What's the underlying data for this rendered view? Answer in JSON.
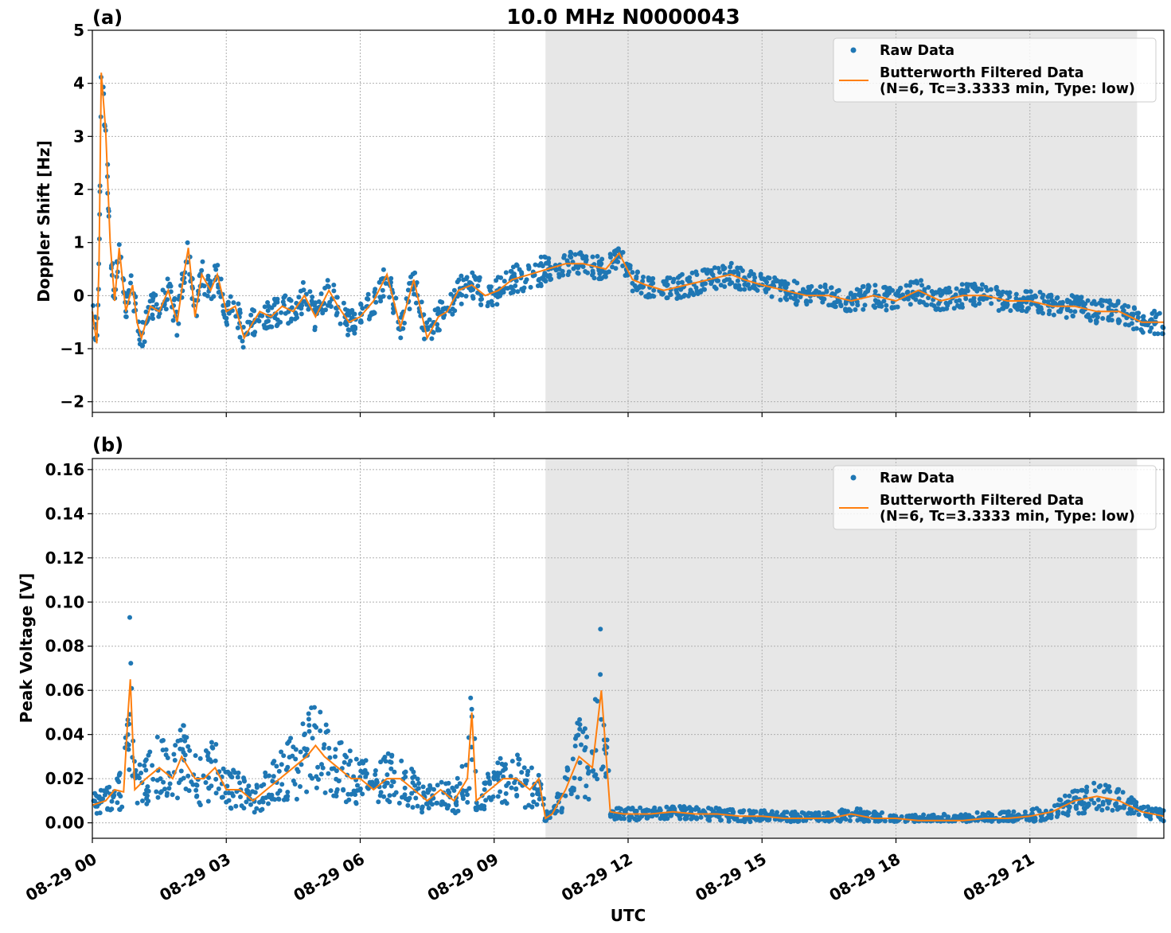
{
  "figure_title": "10.0 MHz N0000043",
  "colors": {
    "raw": "#1f77b4",
    "filtered": "#ff7f0e",
    "shade": "#e7e7e7",
    "grid": "#b0b0b0"
  },
  "chart_data": [
    {
      "type": "scatter",
      "panel_label": "(a)",
      "title": "10.0 MHz N0000043",
      "ylabel": "Doppler Shift [Hz]",
      "xlabel": "",
      "xlim": [
        "2023-08-29 00:00",
        "2023-08-29 24:00"
      ],
      "ylim": [
        -2.2,
        5
      ],
      "yticks": [
        -2,
        -1,
        0,
        1,
        2,
        3,
        4,
        5
      ],
      "ytick_labels": [
        "−2",
        "−1",
        "0",
        "1",
        "2",
        "3",
        "4",
        "5"
      ],
      "grid": true,
      "legend_position": "top-right",
      "shaded_region_hours": [
        10.15,
        23.4
      ],
      "series": [
        {
          "name": "Raw Data",
          "style": "dots",
          "color": "#1f77b4",
          "x_hours": [
            0,
            0.1,
            0.15,
            0.2,
            0.3,
            0.4,
            0.5,
            0.6,
            0.75,
            0.9,
            1.0,
            1.1,
            1.3,
            1.5,
            1.7,
            1.9,
            2.05,
            2.15,
            2.3,
            2.45,
            2.65,
            2.8,
            3.0,
            3.2,
            3.4,
            3.6,
            3.75,
            4.0,
            4.25,
            4.5,
            4.75,
            5.0,
            5.3,
            5.5,
            5.75,
            6.0,
            6.3,
            6.6,
            6.9,
            7.2,
            7.5,
            7.75,
            7.95,
            8.2,
            8.5,
            8.8,
            9.1,
            9.4,
            9.8,
            10.2,
            10.6,
            11.0,
            11.5,
            11.8,
            12.1,
            12.4,
            12.8,
            13.3,
            13.8,
            14.3,
            14.6,
            15.0,
            15.5,
            16.0,
            16.5,
            17.0,
            17.5,
            18.0,
            18.5,
            19.0,
            19.5,
            20.0,
            20.5,
            21.0,
            21.5,
            22.0,
            22.5,
            23.0,
            23.5,
            24.0
          ],
          "y_values": [
            -0.3,
            -0.9,
            0.6,
            4.2,
            3.1,
            1.0,
            -0.1,
            0.9,
            -0.3,
            0.2,
            -0.5,
            -0.8,
            -0.2,
            -0.3,
            0.1,
            -0.5,
            0.4,
            0.9,
            -0.4,
            0.4,
            0.1,
            0.4,
            -0.3,
            -0.2,
            -0.8,
            -0.5,
            -0.3,
            -0.4,
            -0.2,
            -0.3,
            0.0,
            -0.4,
            0.1,
            -0.2,
            -0.5,
            -0.4,
            -0.1,
            0.4,
            -0.6,
            0.3,
            -0.8,
            -0.4,
            -0.3,
            0.1,
            0.2,
            0.0,
            0.1,
            0.3,
            0.4,
            0.5,
            0.6,
            0.6,
            0.5,
            0.8,
            0.3,
            0.2,
            0.1,
            0.2,
            0.3,
            0.4,
            0.3,
            0.2,
            0.1,
            0.0,
            0.0,
            -0.1,
            0.0,
            -0.1,
            0.1,
            -0.1,
            0.0,
            0.0,
            -0.1,
            -0.1,
            -0.2,
            -0.2,
            -0.3,
            -0.3,
            -0.5,
            -0.5
          ]
        },
        {
          "name": "Butterworth Filtered Data\n(N=6, Tc=3.3333 min, Type: low)",
          "style": "line",
          "color": "#ff7f0e",
          "x_hours": [
            0,
            0.1,
            0.15,
            0.2,
            0.3,
            0.4,
            0.5,
            0.6,
            0.75,
            0.9,
            1.0,
            1.1,
            1.3,
            1.5,
            1.7,
            1.9,
            2.05,
            2.15,
            2.3,
            2.45,
            2.65,
            2.8,
            3.0,
            3.2,
            3.4,
            3.6,
            3.75,
            4.0,
            4.25,
            4.5,
            4.75,
            5.0,
            5.3,
            5.5,
            5.75,
            6.0,
            6.3,
            6.6,
            6.9,
            7.2,
            7.5,
            7.75,
            7.95,
            8.2,
            8.5,
            8.8,
            9.1,
            9.4,
            9.8,
            10.2,
            10.6,
            11.0,
            11.5,
            11.8,
            12.1,
            12.4,
            12.8,
            13.3,
            13.8,
            14.3,
            14.6,
            15.0,
            15.5,
            16.0,
            16.5,
            17.0,
            17.5,
            18.0,
            18.5,
            19.0,
            19.5,
            20.0,
            20.5,
            21.0,
            21.5,
            22.0,
            22.5,
            23.0,
            23.5,
            24.0
          ],
          "y_values": [
            -0.3,
            -0.9,
            0.6,
            4.2,
            3.1,
            1.0,
            -0.1,
            0.9,
            -0.3,
            0.2,
            -0.5,
            -0.8,
            -0.2,
            -0.3,
            0.1,
            -0.5,
            0.4,
            0.9,
            -0.4,
            0.4,
            0.1,
            0.4,
            -0.3,
            -0.2,
            -0.8,
            -0.5,
            -0.3,
            -0.4,
            -0.2,
            -0.3,
            0.0,
            -0.4,
            0.1,
            -0.2,
            -0.5,
            -0.4,
            -0.1,
            0.4,
            -0.6,
            0.3,
            -0.8,
            -0.4,
            -0.3,
            0.1,
            0.2,
            0.0,
            0.1,
            0.3,
            0.4,
            0.5,
            0.6,
            0.6,
            0.5,
            0.8,
            0.3,
            0.2,
            0.1,
            0.2,
            0.3,
            0.4,
            0.3,
            0.2,
            0.1,
            0.0,
            0.0,
            -0.1,
            0.0,
            -0.1,
            0.1,
            -0.1,
            0.0,
            0.0,
            -0.1,
            -0.1,
            -0.2,
            -0.2,
            -0.3,
            -0.3,
            -0.5,
            -0.5
          ]
        }
      ]
    },
    {
      "type": "scatter",
      "panel_label": "(b)",
      "title": "",
      "ylabel": "Peak Voltage [V]",
      "xlabel": "UTC",
      "xlim": [
        "2023-08-29 00:00",
        "2023-08-29 24:00"
      ],
      "xtick_labels": [
        "08-29 00",
        "08-29 03",
        "08-29 06",
        "08-29 09",
        "08-29 12",
        "08-29 15",
        "08-29 18",
        "08-29 21"
      ],
      "ylim": [
        -0.007,
        0.165
      ],
      "yticks": [
        0.0,
        0.02,
        0.04,
        0.06,
        0.08,
        0.1,
        0.12,
        0.14,
        0.16
      ],
      "ytick_labels": [
        "0.00",
        "0.02",
        "0.04",
        "0.06",
        "0.08",
        "0.10",
        "0.12",
        "0.14",
        "0.16"
      ],
      "grid": true,
      "legend_position": "top-right",
      "shaded_region_hours": [
        10.15,
        23.4
      ],
      "series": [
        {
          "name": "Raw Data",
          "style": "dots",
          "color": "#1f77b4",
          "x_hours": [
            0,
            0.3,
            0.5,
            0.7,
            0.8,
            0.85,
            0.95,
            1.2,
            1.5,
            1.8,
            2.0,
            2.3,
            2.5,
            2.75,
            3.0,
            3.3,
            3.6,
            3.9,
            4.2,
            4.5,
            4.8,
            5.0,
            5.2,
            5.5,
            5.8,
            6.0,
            6.3,
            6.6,
            6.9,
            7.2,
            7.5,
            7.8,
            8.1,
            8.4,
            8.5,
            8.6,
            8.9,
            9.2,
            9.5,
            9.8,
            10.0,
            10.15,
            10.3,
            10.6,
            10.9,
            11.2,
            11.4,
            11.6,
            11.9,
            12.5,
            13.0,
            13.5,
            14.0,
            14.5,
            15.0,
            15.5,
            16.0,
            16.5,
            17.0,
            17.5,
            18.0,
            18.5,
            19.0,
            19.5,
            20.0,
            20.5,
            21.0,
            21.5,
            22.0,
            22.5,
            23.0,
            23.5,
            24.0
          ],
          "y_values": [
            0.008,
            0.01,
            0.015,
            0.014,
            0.05,
            0.065,
            0.015,
            0.02,
            0.025,
            0.02,
            0.03,
            0.02,
            0.02,
            0.025,
            0.015,
            0.015,
            0.01,
            0.015,
            0.02,
            0.025,
            0.03,
            0.035,
            0.03,
            0.025,
            0.02,
            0.02,
            0.015,
            0.02,
            0.02,
            0.015,
            0.01,
            0.015,
            0.01,
            0.02,
            0.05,
            0.01,
            0.015,
            0.02,
            0.02,
            0.015,
            0.02,
            0.002,
            0.004,
            0.015,
            0.03,
            0.025,
            0.06,
            0.005,
            0.004,
            0.004,
            0.005,
            0.004,
            0.004,
            0.003,
            0.003,
            0.002,
            0.002,
            0.002,
            0.004,
            0.002,
            0.002,
            0.001,
            0.001,
            0.001,
            0.002,
            0.002,
            0.003,
            0.005,
            0.01,
            0.012,
            0.01,
            0.005,
            0.003
          ]
        },
        {
          "name": "Butterworth Filtered Data\n(N=6, Tc=3.3333 min, Type: low)",
          "style": "line",
          "color": "#ff7f0e",
          "x_hours": [
            0,
            0.3,
            0.5,
            0.7,
            0.8,
            0.85,
            0.95,
            1.2,
            1.5,
            1.8,
            2.0,
            2.3,
            2.5,
            2.75,
            3.0,
            3.3,
            3.6,
            3.9,
            4.2,
            4.5,
            4.8,
            5.0,
            5.2,
            5.5,
            5.8,
            6.0,
            6.3,
            6.6,
            6.9,
            7.2,
            7.5,
            7.8,
            8.1,
            8.4,
            8.5,
            8.6,
            8.9,
            9.2,
            9.5,
            9.8,
            10.0,
            10.15,
            10.3,
            10.6,
            10.9,
            11.2,
            11.4,
            11.6,
            11.9,
            12.5,
            13.0,
            13.5,
            14.0,
            14.5,
            15.0,
            15.5,
            16.0,
            16.5,
            17.0,
            17.5,
            18.0,
            18.5,
            19.0,
            19.5,
            20.0,
            20.5,
            21.0,
            21.5,
            22.0,
            22.5,
            23.0,
            23.5,
            24.0
          ],
          "y_values": [
            0.008,
            0.01,
            0.015,
            0.014,
            0.05,
            0.065,
            0.015,
            0.02,
            0.025,
            0.02,
            0.03,
            0.02,
            0.02,
            0.025,
            0.015,
            0.015,
            0.01,
            0.015,
            0.02,
            0.025,
            0.03,
            0.035,
            0.03,
            0.025,
            0.02,
            0.02,
            0.015,
            0.02,
            0.02,
            0.015,
            0.01,
            0.015,
            0.01,
            0.02,
            0.05,
            0.01,
            0.015,
            0.02,
            0.02,
            0.015,
            0.02,
            0.002,
            0.004,
            0.015,
            0.03,
            0.025,
            0.06,
            0.005,
            0.004,
            0.004,
            0.005,
            0.004,
            0.004,
            0.003,
            0.003,
            0.002,
            0.002,
            0.002,
            0.004,
            0.002,
            0.002,
            0.001,
            0.001,
            0.001,
            0.002,
            0.002,
            0.003,
            0.005,
            0.01,
            0.012,
            0.01,
            0.005,
            0.003
          ]
        }
      ]
    }
  ]
}
